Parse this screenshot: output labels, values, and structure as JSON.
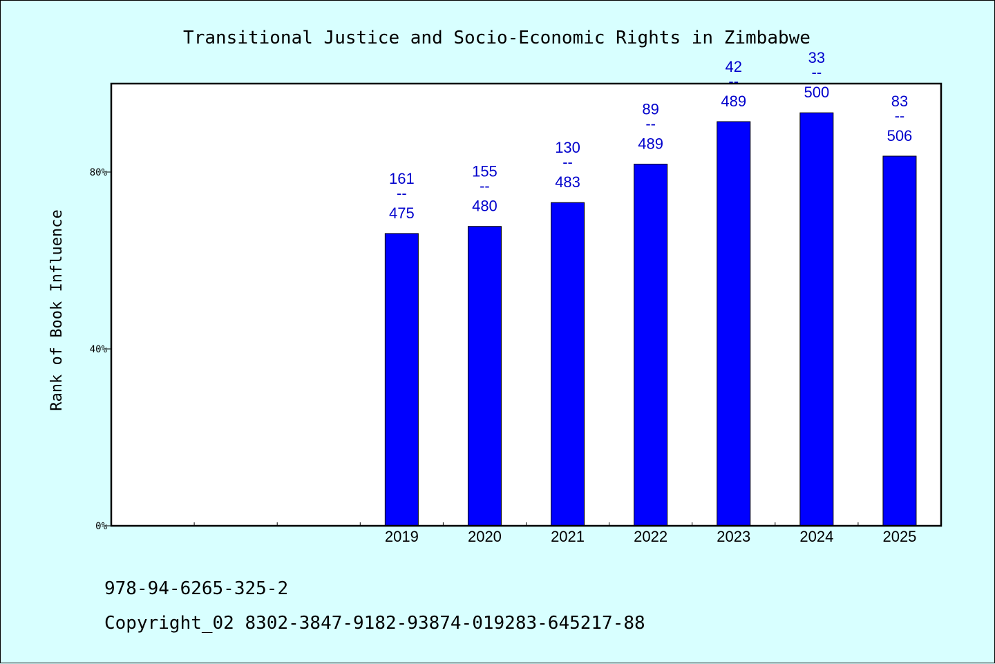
{
  "chart_data": {
    "type": "bar",
    "title": "Transitional Justice and Socio-Economic Rights in Zimbabwe",
    "xlabel": "",
    "ylabel": "Rank of Book Influence",
    "categories": [
      "2019",
      "2020",
      "2021",
      "2022",
      "2023",
      "2024",
      "2025"
    ],
    "series": [
      {
        "values": [
          66.1,
          67.7,
          73.1,
          81.8,
          91.4,
          93.4,
          83.6
        ],
        "color": "#0000ff",
        "labels": [
          {
            "rank": "161",
            "sep": "--",
            "total": "475"
          },
          {
            "rank": "155",
            "sep": "--",
            "total": "480"
          },
          {
            "rank": "130",
            "sep": "--",
            "total": "483"
          },
          {
            "rank": "89",
            "sep": "--",
            "total": "489"
          },
          {
            "rank": "42",
            "sep": "--",
            "total": "489"
          },
          {
            "rank": "33",
            "sep": "--",
            "total": "500"
          },
          {
            "rank": "83",
            "sep": "--",
            "total": "506"
          }
        ]
      }
    ],
    "ylim": [
      0,
      100
    ],
    "yticks": [
      0,
      40,
      80
    ],
    "ytick_labels": [
      "0%",
      "40%",
      "80%"
    ],
    "x_slots": 10,
    "first_category_slot": 3,
    "grid": false,
    "background_color": "#d8ffff",
    "plot_background": "#ffffff",
    "label_color": "#0000cc"
  },
  "footer": {
    "isbn": "978-94-6265-325-2",
    "copyright": "Copyright_02 8302-3847-9182-93874-019283-645217-88"
  }
}
